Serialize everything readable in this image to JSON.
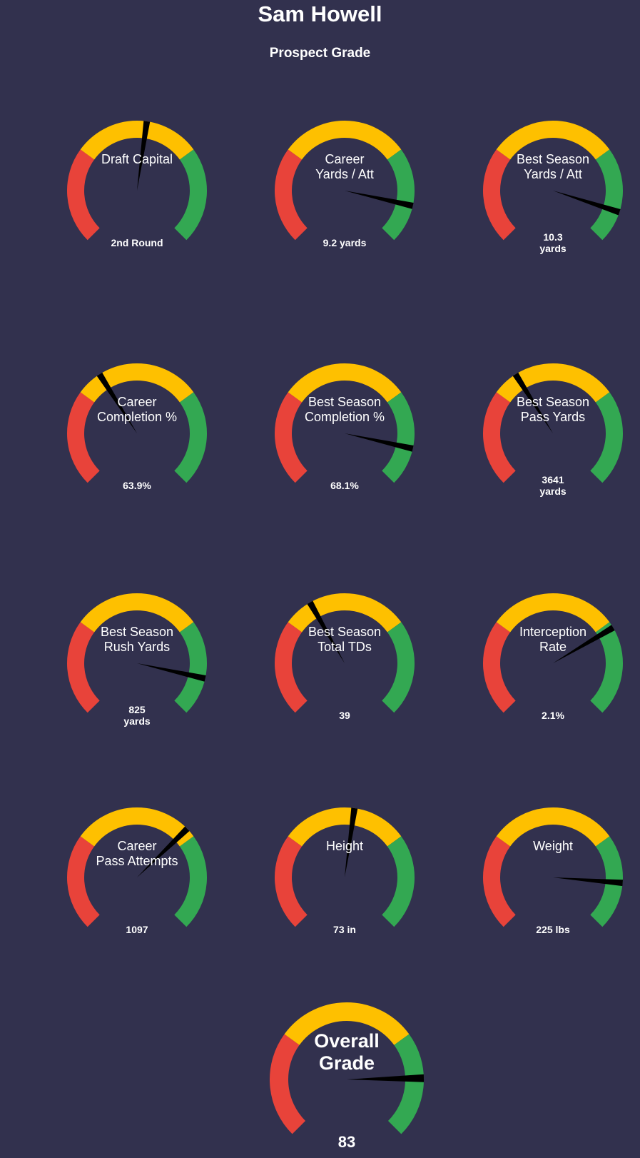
{
  "header": {
    "title": "Sam Howell",
    "subtitle": "Prospect Grade"
  },
  "colors": {
    "background": "#32314e",
    "low": "#e8433a",
    "mid": "#fec000",
    "high": "#33a852",
    "needle": "#000000"
  },
  "chart_data": {
    "type": "gauge",
    "title": "Prospect Grade",
    "range": [
      0,
      100
    ],
    "bands": [
      {
        "name": "low",
        "from": 0,
        "to": 30
      },
      {
        "name": "mid",
        "from": 30,
        "to": 70
      },
      {
        "name": "high",
        "from": 70,
        "to": 100
      }
    ],
    "gauges": [
      {
        "id": "draft-capital",
        "label": [
          "Draft Capital"
        ],
        "value_text": [
          "2nd Round"
        ],
        "score": 53
      },
      {
        "id": "career-yards-att",
        "label": [
          "Career",
          "Yards / Att"
        ],
        "value_text": [
          "9.2 yards"
        ],
        "score": 88
      },
      {
        "id": "best-season-yards-att",
        "label": [
          "Best Season",
          "Yards / Att"
        ],
        "value_text": [
          "10.3",
          "yards"
        ],
        "score": 90
      },
      {
        "id": "career-completion",
        "label": [
          "Career",
          "Completion %"
        ],
        "value_text": [
          "63.9%"
        ],
        "score": 38
      },
      {
        "id": "best-season-completion",
        "label": [
          "Best Season",
          "Completion %"
        ],
        "value_text": [
          "68.1%"
        ],
        "score": 88
      },
      {
        "id": "best-season-pass-yards",
        "label": [
          "Best Season",
          "Pass Yards"
        ],
        "value_text": [
          "3641",
          "yards"
        ],
        "score": 38
      },
      {
        "id": "best-season-rush-yards",
        "label": [
          "Best Season",
          "Rush Yards"
        ],
        "value_text": [
          "825",
          "yards"
        ],
        "score": 88
      },
      {
        "id": "best-season-total-tds",
        "label": [
          "Best Season",
          "Total TDs"
        ],
        "value_text": [
          "39"
        ],
        "score": 39
      },
      {
        "id": "interception-rate",
        "label": [
          "Interception",
          "Rate"
        ],
        "value_text": [
          "2.1%"
        ],
        "score": 72
      },
      {
        "id": "career-pass-attempts",
        "label": [
          "Career",
          "Pass Attempts"
        ],
        "value_text": [
          "1097"
        ],
        "score": 67
      },
      {
        "id": "height",
        "label": [
          "Height"
        ],
        "value_text": [
          "73 in"
        ],
        "score": 53
      },
      {
        "id": "weight",
        "label": [
          "Weight"
        ],
        "value_text": [
          "225 lbs"
        ],
        "score": 85
      }
    ],
    "overall": {
      "id": "overall-grade",
      "label": [
        "Overall",
        "Grade"
      ],
      "value_text": [
        "83"
      ],
      "score": 83
    }
  }
}
